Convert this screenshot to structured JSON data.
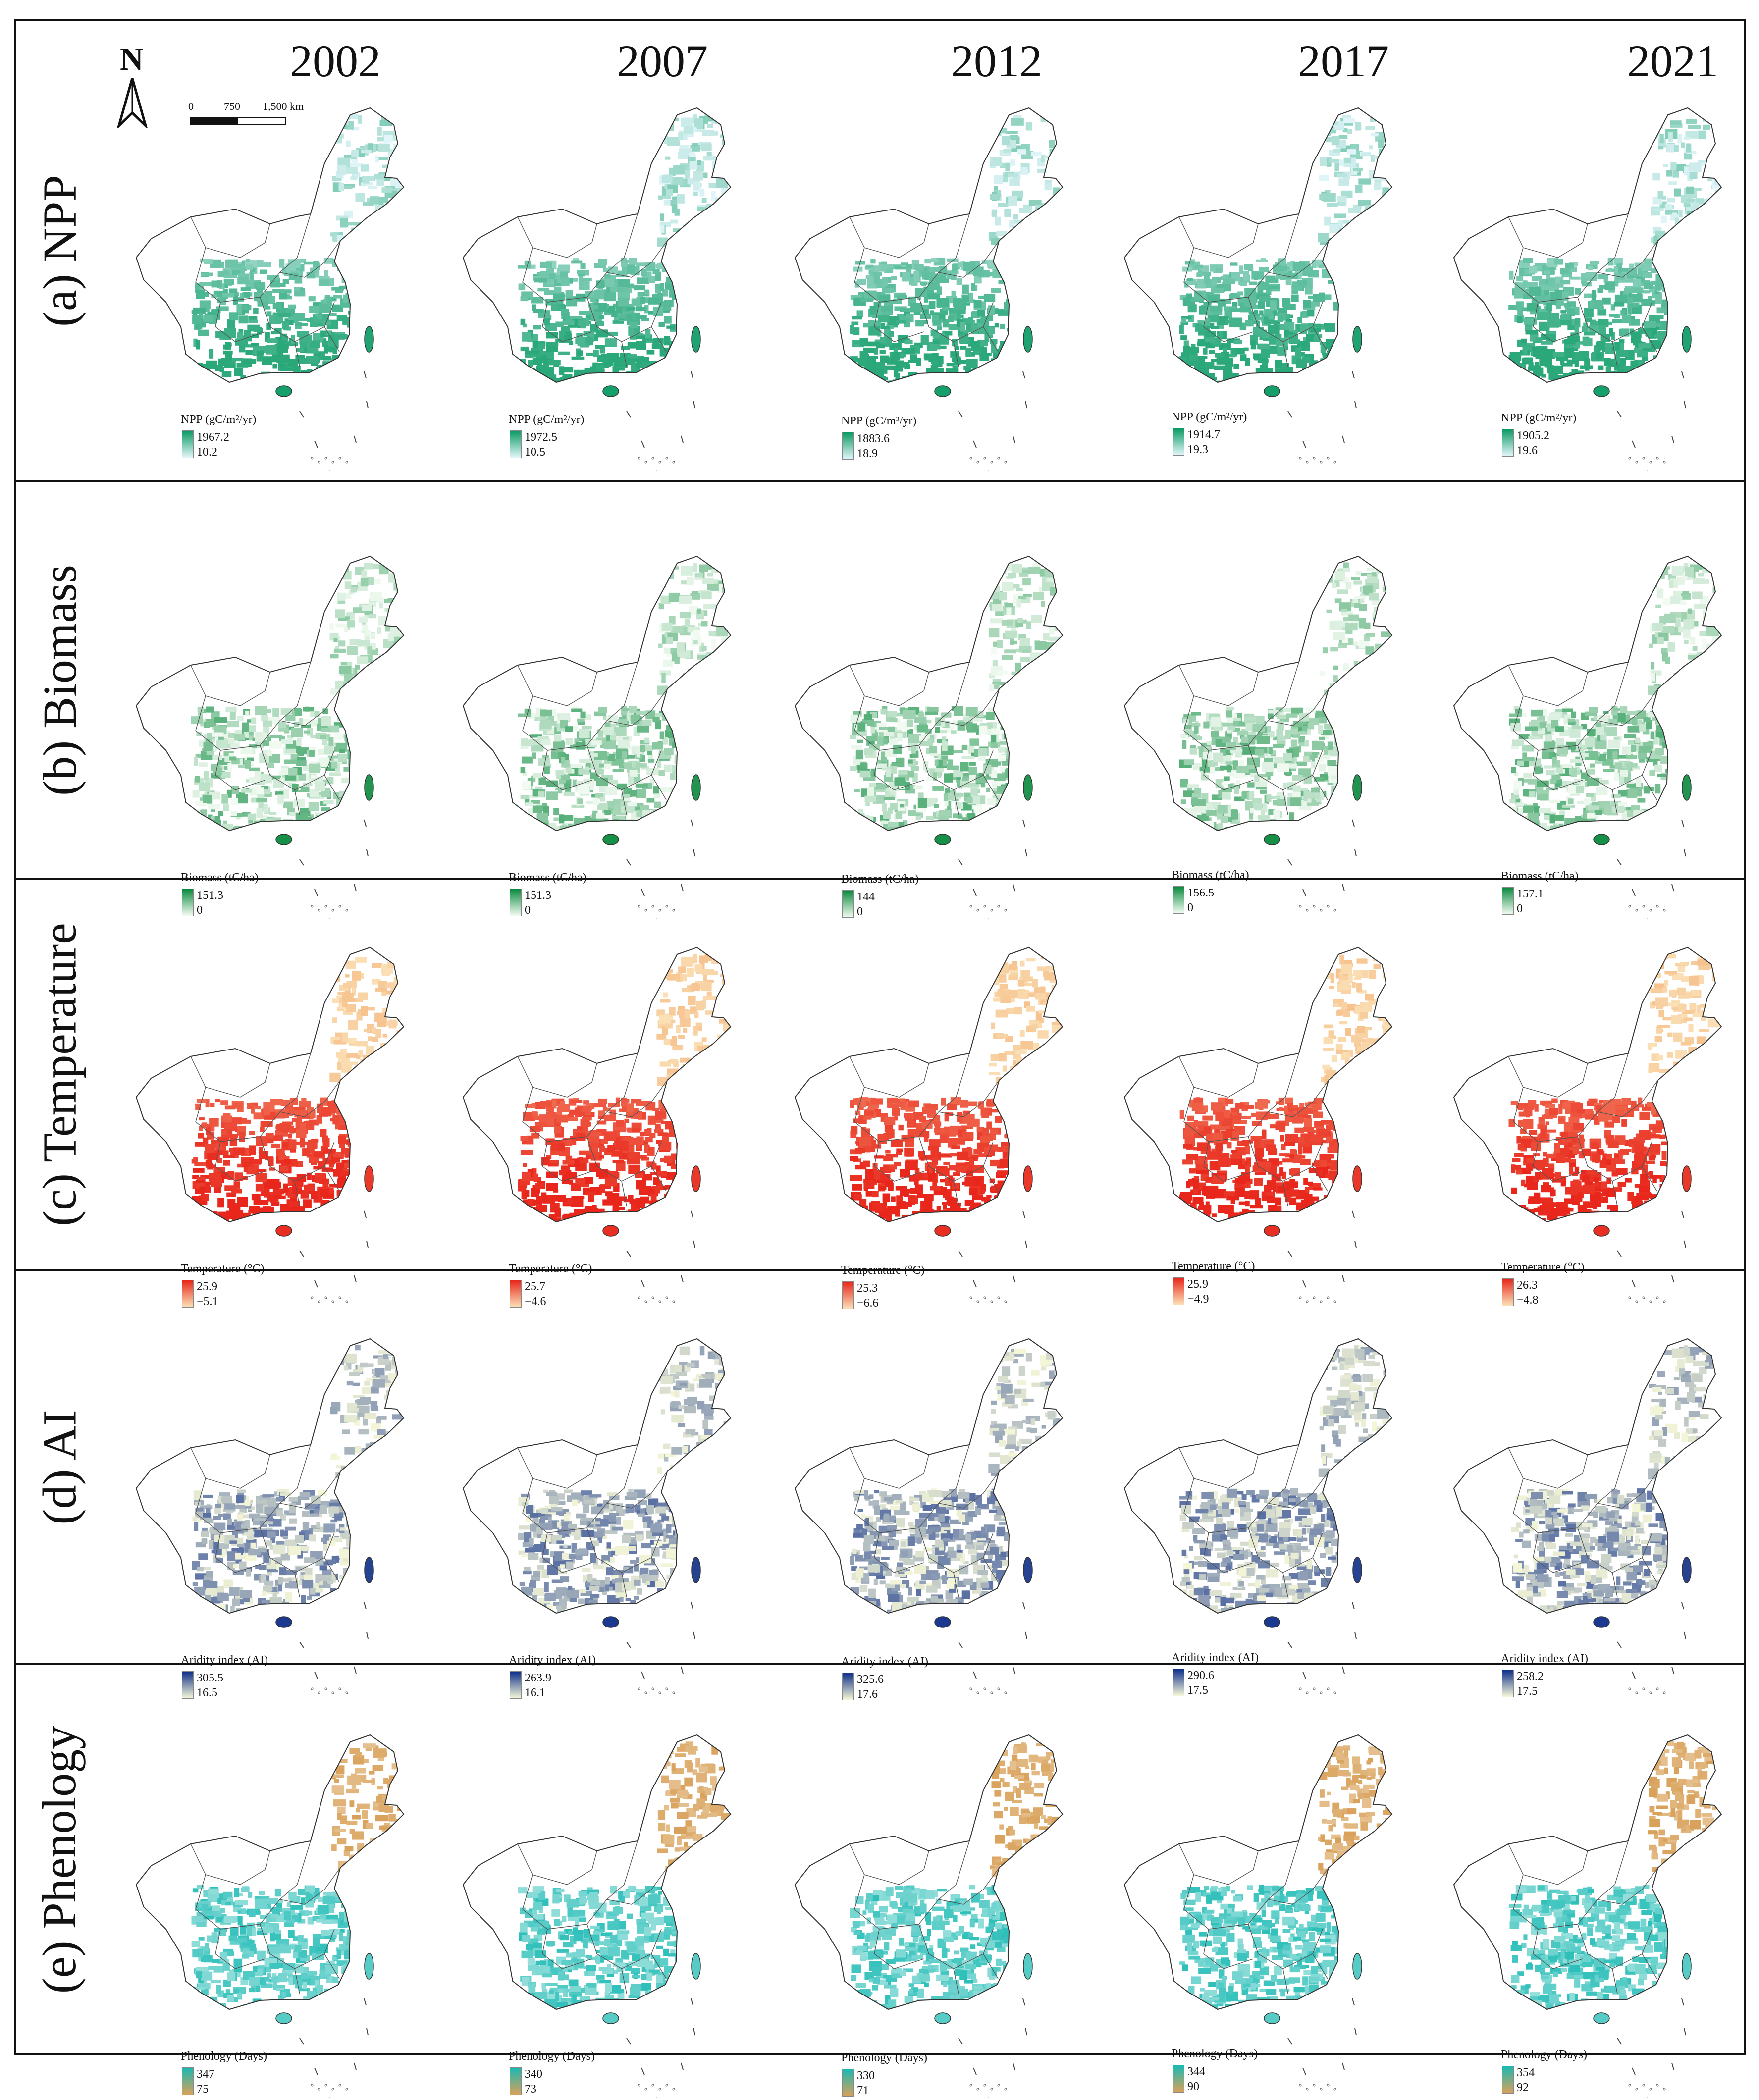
{
  "figure": {
    "years": [
      "2002",
      "2007",
      "2012",
      "2017",
      "2021"
    ],
    "north_arrow_label": "N",
    "scalebar": {
      "ticks": [
        "0",
        "750",
        "1,500 km"
      ]
    }
  },
  "colors": {
    "npp": [
      "#e3f6fb",
      "#0a9a63"
    ],
    "biomass": [
      "#f3fbf2",
      "#0a8a3e"
    ],
    "temperature": [
      "#fbe0b6",
      "#e8261b"
    ],
    "ai": [
      "#f5f7d8",
      "#0f2f8a"
    ],
    "phenology": [
      "#d9a15a",
      "#19b9b3"
    ]
  },
  "rows": [
    {
      "key": "npp",
      "label": "(a) NPP",
      "legend_title": "NPP (gC/m²/yr)",
      "legends": [
        {
          "max": "1967.2",
          "min": "10.2"
        },
        {
          "max": "1972.5",
          "min": "10.5"
        },
        {
          "max": "1883.6",
          "min": "18.9"
        },
        {
          "max": "1914.7",
          "min": "19.3"
        },
        {
          "max": "1905.2",
          "min": "19.6"
        }
      ]
    },
    {
      "key": "biomass",
      "label": "(b) Biomass",
      "legend_title": "Biomass (tC/ha)",
      "legends": [
        {
          "max": "151.3",
          "min": "0"
        },
        {
          "max": "151.3",
          "min": "0"
        },
        {
          "max": "144",
          "min": "0"
        },
        {
          "max": "156.5",
          "min": "0"
        },
        {
          "max": "157.1",
          "min": "0"
        }
      ]
    },
    {
      "key": "temperature",
      "label": "(c) Temperature",
      "legend_title": "Temperature (°C)",
      "legends": [
        {
          "max": "25.9",
          "min": "−5.1"
        },
        {
          "max": "25.7",
          "min": "−4.6"
        },
        {
          "max": "25.3",
          "min": "−6.6"
        },
        {
          "max": "25.9",
          "min": "−4.9"
        },
        {
          "max": "26.3",
          "min": "−4.8"
        }
      ]
    },
    {
      "key": "ai",
      "label": "(d) AI",
      "legend_title": "Aridity index (AI)",
      "legends": [
        {
          "max": "305.5",
          "min": "16.5"
        },
        {
          "max": "263.9",
          "min": "16.1"
        },
        {
          "max": "325.6",
          "min": "17.6"
        },
        {
          "max": "290.6",
          "min": "17.5"
        },
        {
          "max": "258.2",
          "min": "17.5"
        }
      ]
    },
    {
      "key": "phenology",
      "label": "(e) Phenology",
      "legend_title": "Phenology (Days)",
      "legends": [
        {
          "max": "347",
          "min": "75"
        },
        {
          "max": "340",
          "min": "73"
        },
        {
          "max": "330",
          "min": "71"
        },
        {
          "max": "344",
          "min": "90"
        },
        {
          "max": "354",
          "min": "92"
        }
      ]
    }
  ]
}
